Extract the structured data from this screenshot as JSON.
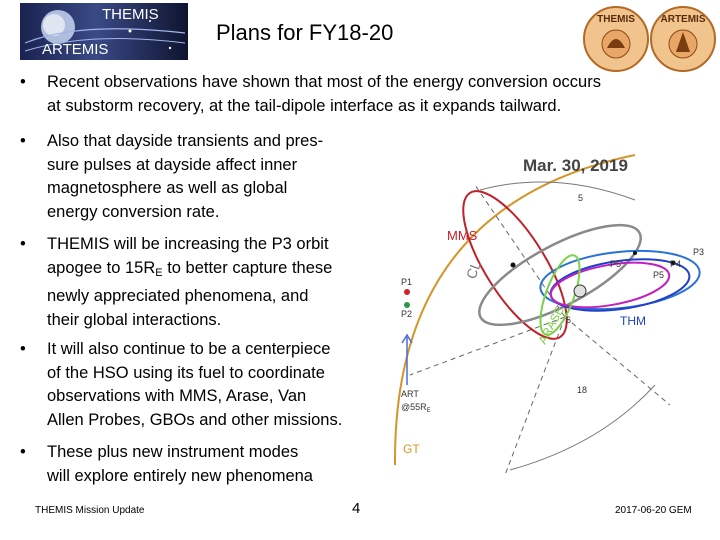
{
  "header": {
    "logo_top": "THEMIS",
    "logo_bottom": "ARTEMIS",
    "title": "Plans for FY18-20",
    "badge_left": "THEMIS",
    "badge_right": "ARTEMIS"
  },
  "bullets": [
    {
      "lines": [
        "Recent observations have shown that most of the energy conversion occurs",
        "at substorm recovery, at the tail-dipole interface as it expands tailward."
      ]
    },
    {
      "lines": [
        "Also that dayside transients and pres-",
        "sure pulses at dayside affect inner",
        "magnetosphere as well as global",
        "energy conversion rate."
      ]
    },
    {
      "lines": [
        "THEMIS will be increasing the P3 orbit",
        "these",
        "newly appreciated phenomena, and",
        "their global interactions."
      ],
      "line2_pre": "apogee to 15R",
      "line2_sub": "E",
      "line2_post": " to better capture "
    },
    {
      "lines": [
        "It will also continue to be a centerpiece",
        "of the HSO using its fuel to coordinate",
        "observations with MMS, Arase, Van",
        "Allen Probes, GBOs and other missions."
      ]
    },
    {
      "lines": [
        "These plus new instrument modes",
        "will explore entirely new phenomena"
      ]
    }
  ],
  "figure": {
    "date": "Mar. 30, 2019",
    "labels": {
      "mms": "MMS",
      "cl": "CL",
      "arase": "ARASE",
      "thm": "THM",
      "gt": "GT",
      "p1": "P1",
      "p2": "P2",
      "p3": "P3",
      "p4": "P4",
      "p5": "P5",
      "p5prime": "P5'",
      "art": "ART",
      "art_at_pre": "@55R",
      "art_at_sub": "E",
      "tick_5": "5",
      "tick_18": "18",
      "tick_6": "6"
    },
    "colors": {
      "mms": "#c0202a",
      "cl": "#8a8a8a",
      "arase": "#7ad14a",
      "thm": "#2040c8",
      "p3": "#2a72d8",
      "p4": "#c020c0",
      "gt": "#d4962a",
      "grid": "#666666"
    }
  },
  "footer": {
    "left": "THEMIS Mission Update",
    "page": "4",
    "right": "2017-06-20 GEM"
  }
}
